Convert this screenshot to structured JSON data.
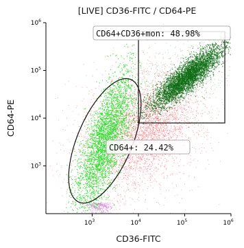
{
  "chart_data": {
    "type": "scatter",
    "title": "[LIVE] CD36-FITC / CD64-PE",
    "xlabel": "CD36-FITC",
    "ylabel": "CD64-PE",
    "xscale": "log",
    "yscale": "log",
    "xlim": [
      100,
      1000000
    ],
    "ylim": [
      100,
      1000000
    ],
    "x_ticks": [
      {
        "base": "10",
        "exp": "3",
        "value": 1000
      },
      {
        "base": "10",
        "exp": "4",
        "value": 10000
      },
      {
        "base": "10",
        "exp": "5",
        "value": 100000
      },
      {
        "base": "10",
        "exp": "6",
        "value": 1000000
      }
    ],
    "y_ticks": [
      {
        "base": "10",
        "exp": "3",
        "value": 1000
      },
      {
        "base": "10",
        "exp": "4",
        "value": 10000
      },
      {
        "base": "10",
        "exp": "5",
        "value": 100000
      },
      {
        "base": "10",
        "exp": "6",
        "value": 1000000
      }
    ],
    "populations": [
      {
        "color": "#2e7d32",
        "center": [
          200000,
          150000
        ]
      },
      {
        "color": "#22dd22",
        "center": [
          2500,
          3000
        ]
      },
      {
        "color": "#ff3344",
        "center": [
          20000,
          4000
        ]
      }
    ],
    "gates": [
      {
        "type": "rectangle",
        "label": "CD64+CD36+mon: 48.98%",
        "x_range": [
          10000,
          1000000
        ],
        "y_range": [
          10000,
          1000000
        ]
      },
      {
        "type": "ellipse",
        "label": "CD64+: 24.42%"
      }
    ],
    "grid": false
  },
  "colors": {
    "mono_dark": "#0e6b14",
    "mono_light": "#22dd22",
    "noise": "#ff3344",
    "debris": "#cc66cc"
  }
}
